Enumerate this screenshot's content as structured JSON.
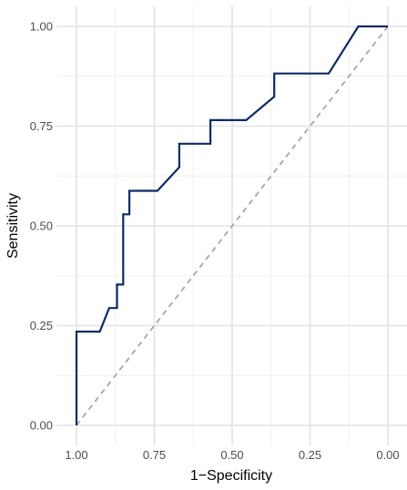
{
  "chart_data": {
    "type": "line",
    "title": "",
    "xlabel": "1−Specificity",
    "ylabel": "Sensitivity",
    "xlim": [
      1.0,
      0.0
    ],
    "ylim": [
      0.0,
      1.0
    ],
    "x_reversed": true,
    "x_ticks": [
      "1.00",
      "0.75",
      "0.50",
      "0.25",
      "0.00"
    ],
    "x_tick_values": [
      1.0,
      0.75,
      0.5,
      0.25,
      0.0
    ],
    "y_ticks": [
      "0.00",
      "0.25",
      "0.50",
      "0.75",
      "1.00"
    ],
    "y_tick_values": [
      0.0,
      0.25,
      0.5,
      0.75,
      1.0
    ],
    "grid": true,
    "legend": "none",
    "series": [
      {
        "role": "roc",
        "color": "#0b2a66",
        "style": "solid",
        "points": [
          [
            1.0,
            0.0
          ],
          [
            1.0,
            0.235
          ],
          [
            0.975,
            0.235
          ],
          [
            0.95,
            0.235
          ],
          [
            0.925,
            0.235
          ],
          [
            0.895,
            0.294
          ],
          [
            0.87,
            0.294
          ],
          [
            0.87,
            0.353
          ],
          [
            0.85,
            0.353
          ],
          [
            0.85,
            0.529
          ],
          [
            0.83,
            0.529
          ],
          [
            0.83,
            0.588
          ],
          [
            0.8,
            0.588
          ],
          [
            0.775,
            0.588
          ],
          [
            0.74,
            0.588
          ],
          [
            0.67,
            0.647
          ],
          [
            0.67,
            0.706
          ],
          [
            0.64,
            0.706
          ],
          [
            0.6,
            0.706
          ],
          [
            0.57,
            0.706
          ],
          [
            0.57,
            0.765
          ],
          [
            0.53,
            0.765
          ],
          [
            0.455,
            0.765
          ],
          [
            0.365,
            0.824
          ],
          [
            0.365,
            0.882
          ],
          [
            0.33,
            0.882
          ],
          [
            0.29,
            0.882
          ],
          [
            0.225,
            0.882
          ],
          [
            0.19,
            0.882
          ],
          [
            0.095,
            1.0
          ],
          [
            0.0,
            1.0
          ]
        ]
      },
      {
        "role": "reference",
        "color": "#a6a6a6",
        "style": "dashed",
        "points": [
          [
            1.0,
            0.0
          ],
          [
            0.0,
            1.0
          ]
        ]
      }
    ]
  }
}
